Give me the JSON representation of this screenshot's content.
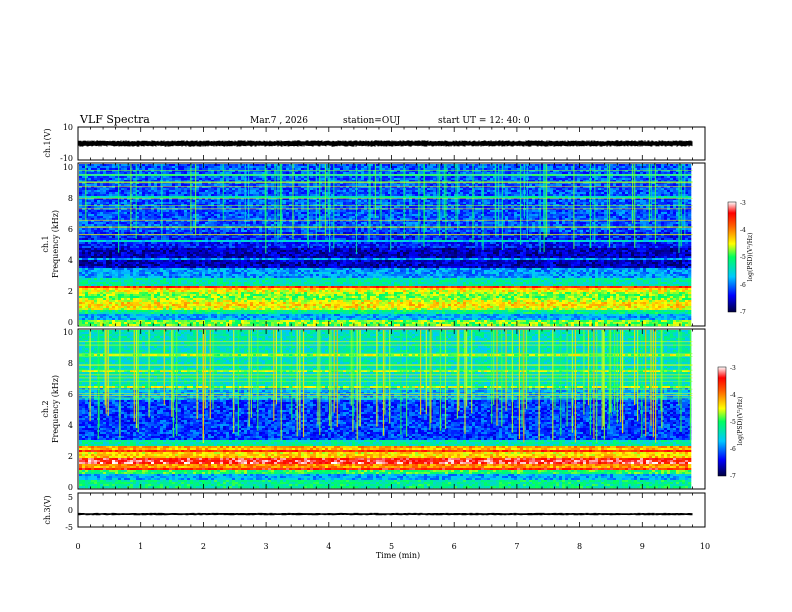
{
  "header": {
    "title": "VLF Spectra",
    "date": "Mar.7 , 2026",
    "station": "station=OUJ",
    "start": "start UT = 12: 40: 0"
  },
  "chart_data": [
    {
      "type": "line",
      "name": "ch1-waveform",
      "ylabel": "ch.1(V)",
      "ylim": [
        -10,
        10
      ],
      "yticks": [
        "10",
        "-10"
      ],
      "xlim": [
        0,
        10
      ],
      "level": 0,
      "color": "#000000"
    },
    {
      "type": "heatmap",
      "name": "ch1-spectrogram",
      "ylabel_line1": "ch.1",
      "ylabel_line2": "Frequency (kHz)",
      "ylim": [
        0,
        10
      ],
      "yticks": [
        "0",
        "2",
        "4",
        "6",
        "8",
        "10"
      ],
      "xlim": [
        0,
        9.8
      ],
      "colorbar": {
        "label": "log(PSD)(V²/Hz)",
        "range": [
          -7,
          -3
        ],
        "ticks": [
          "-3",
          "-4",
          "-5",
          "-6",
          "-7"
        ]
      }
    },
    {
      "type": "heatmap",
      "name": "ch2-spectrogram",
      "ylabel_line1": "ch.2",
      "ylabel_line2": "Frequency (kHz)",
      "ylim": [
        0,
        10
      ],
      "yticks": [
        "0",
        "2",
        "4",
        "6",
        "8",
        "10"
      ],
      "xlim": [
        0,
        9.8
      ],
      "colorbar": {
        "label": "log(PSD)(V²/Hz)",
        "range": [
          -7,
          -3
        ],
        "ticks": [
          "-3",
          "-4",
          "-5",
          "-6",
          "-7"
        ]
      }
    },
    {
      "type": "line",
      "name": "ch3-waveform",
      "ylabel": "ch.3(V)",
      "ylim": [
        -5,
        5
      ],
      "yticks": [
        "5",
        "0",
        "-5"
      ],
      "xlim": [
        0,
        10
      ],
      "level": -1.2,
      "color": "#000000"
    }
  ],
  "xaxis": {
    "label": "Time (min)",
    "range": [
      0,
      10
    ],
    "ticks": [
      "0",
      "1",
      "2",
      "3",
      "4",
      "5",
      "6",
      "7",
      "8",
      "9",
      "10"
    ]
  }
}
